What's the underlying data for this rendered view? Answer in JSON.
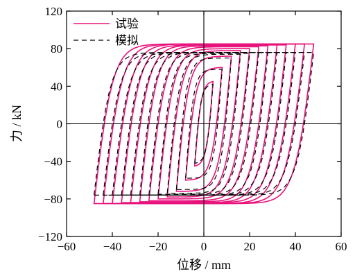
{
  "chart_data": {
    "type": "line",
    "xlabel": "位移 / mm",
    "ylabel": "力 / kN",
    "xlim": [
      -60,
      60
    ],
    "ylim": [
      -120,
      120
    ],
    "xticks": [
      -60,
      -40,
      -20,
      0,
      20,
      40,
      60
    ],
    "yticks": [
      -120,
      -80,
      -40,
      0,
      40,
      80,
      120
    ],
    "xtick_labels": [
      "−60",
      "−40",
      "−20",
      "0",
      "20",
      "40",
      "60"
    ],
    "ytick_labels": [
      "−120",
      "−80",
      "−40",
      "0",
      "40",
      "80",
      "120"
    ],
    "grid": false,
    "zero_lines": true,
    "legend_position": "top-left",
    "series": [
      {
        "name": "试验",
        "color": "#e8127c",
        "dash": "solid",
        "cycles": [
          {
            "amp": 4,
            "peak": 45,
            "t": 2.5
          },
          {
            "amp": 8,
            "peak": 60,
            "t": 4
          },
          {
            "amp": 12,
            "peak": 72,
            "t": 5
          },
          {
            "amp": 16,
            "peak": 78,
            "t": 6
          },
          {
            "amp": 20,
            "peak": 80,
            "t": 6.5
          },
          {
            "amp": 24,
            "peak": 82,
            "t": 7
          },
          {
            "amp": 28,
            "peak": 83,
            "t": 7
          },
          {
            "amp": 32,
            "peak": 84,
            "t": 7.5
          },
          {
            "amp": 36,
            "peak": 84,
            "t": 7.5
          },
          {
            "amp": 40,
            "peak": 85,
            "t": 8
          },
          {
            "amp": 44,
            "peak": 85,
            "t": 8
          },
          {
            "amp": 48,
            "peak": 85,
            "t": 8
          }
        ]
      },
      {
        "name": "模拟",
        "color": "#000000",
        "dash": "dashed",
        "cycles": [
          {
            "amp": 4,
            "peak": 42,
            "t": 2
          },
          {
            "amp": 8,
            "peak": 58,
            "t": 3
          },
          {
            "amp": 12,
            "peak": 70,
            "t": 4
          },
          {
            "amp": 16,
            "peak": 74,
            "t": 5
          },
          {
            "amp": 20,
            "peak": 75,
            "t": 5.5
          },
          {
            "amp": 24,
            "peak": 76,
            "t": 6
          },
          {
            "amp": 28,
            "peak": 76,
            "t": 6
          },
          {
            "amp": 32,
            "peak": 76,
            "t": 6.5
          },
          {
            "amp": 36,
            "peak": 76,
            "t": 6.5
          },
          {
            "amp": 40,
            "peak": 76,
            "t": 7
          },
          {
            "amp": 44,
            "peak": 76,
            "t": 7
          },
          {
            "amp": 48,
            "peak": 76,
            "t": 7
          }
        ]
      }
    ]
  }
}
